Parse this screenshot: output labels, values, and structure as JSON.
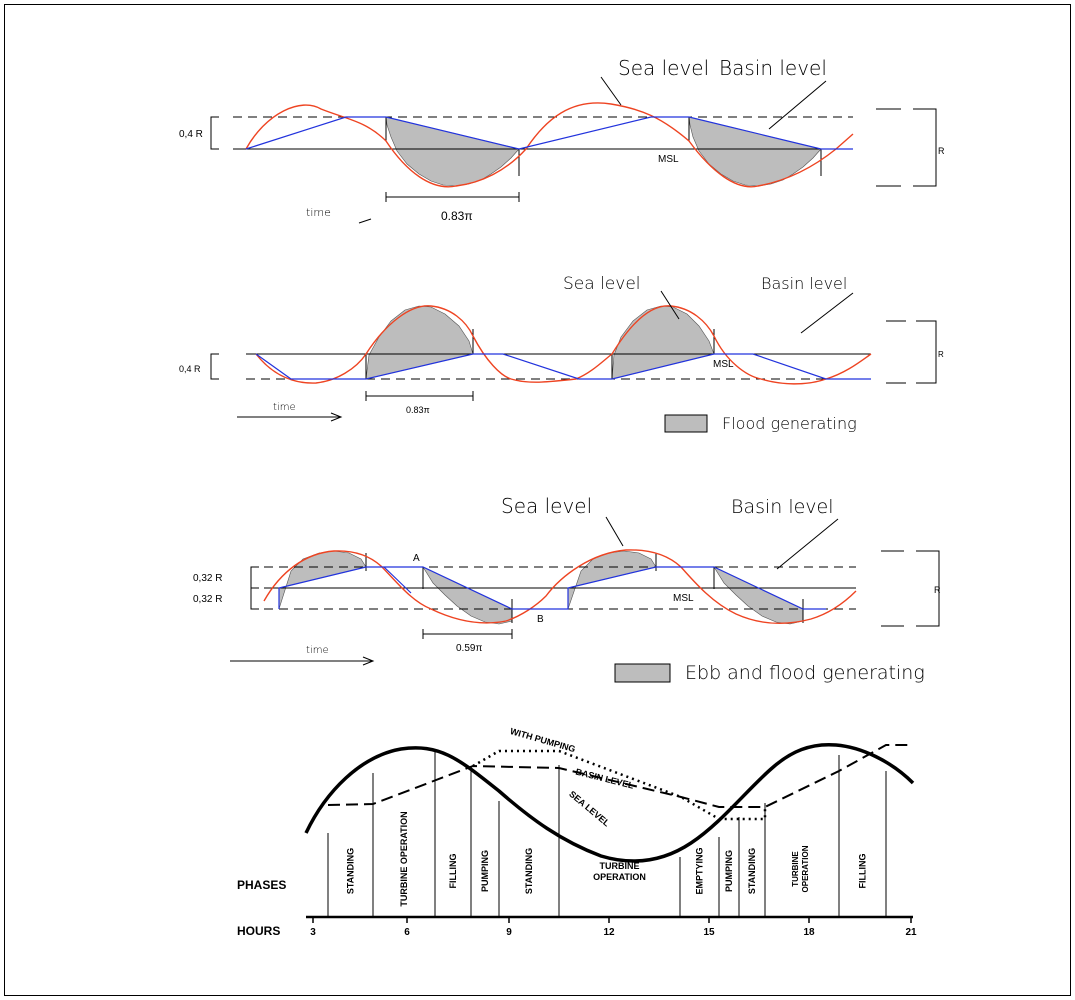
{
  "colors": {
    "sea": "#ee4422",
    "basin": "#2233dd",
    "shade": "#bdbdbd",
    "ink": "#000000"
  },
  "panel1": {
    "sea_label": "Sea level",
    "basin_label": "Basin level",
    "head_label": "0,4  R",
    "range_label": "R",
    "msl_label": "MSL",
    "duration_label": "0.83π",
    "time_label": "time"
  },
  "panel2": {
    "sea_label": "Sea level",
    "basin_label": "Basin level",
    "head_label": "0,4  R",
    "range_label": "R",
    "msl_label": "MSL",
    "duration_label": "0.83π",
    "time_label": "time",
    "legend_label": "Flood generating"
  },
  "panel3": {
    "sea_label": "Sea level",
    "basin_label": "Basin level",
    "head_upper_label": "0,32  R",
    "head_lower_label": "0,32  R",
    "range_label": "R",
    "msl_label": "MSL",
    "point_a_label": "A",
    "point_b_label": "B",
    "duration_label": "0.59π",
    "time_label": "time",
    "legend_label": "Ebb and flood generating"
  },
  "panel4": {
    "with_pumping_label": "WITH PUMPING",
    "basin_level_label": "BASIN LEVEL",
    "sea_level_label": "SEA LEVEL",
    "phases_label": "PHASES",
    "hours_label": "HOURS",
    "phases": [
      "STANDING",
      "TURBINE OPERATION",
      "FILLING",
      "PUMPING",
      "STANDING",
      "TURBINE OPERATION",
      "EMPTYING",
      "PUMPING",
      "STANDING",
      "TURBINE OPERATION",
      "FILLING"
    ],
    "hours": [
      "3",
      "6",
      "9",
      "12",
      "15",
      "18",
      "21"
    ]
  }
}
